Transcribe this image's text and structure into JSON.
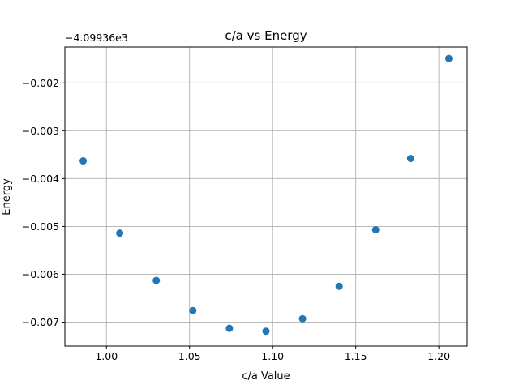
{
  "chart_data": {
    "type": "scatter",
    "title": "c/a vs Energy",
    "xlabel": "c/a Value",
    "ylabel": "Energy",
    "y_offset_text": "−4.09936e3",
    "xlim": [
      0.975,
      1.217
    ],
    "ylim": [
      -0.0075,
      -0.00125
    ],
    "xticks": [
      1.0,
      1.05,
      1.1,
      1.15,
      1.2
    ],
    "xtick_labels": [
      "1.00",
      "1.05",
      "1.10",
      "1.15",
      "1.20"
    ],
    "yticks": [
      -0.002,
      -0.003,
      -0.004,
      -0.005,
      -0.006,
      -0.007
    ],
    "ytick_labels": [
      "−0.002",
      "−0.003",
      "−0.004",
      "−0.005",
      "−0.006",
      "−0.007"
    ],
    "grid": true,
    "point_color": "#1f77b4",
    "x": [
      0.986,
      1.008,
      1.03,
      1.052,
      1.074,
      1.096,
      1.118,
      1.14,
      1.162,
      1.183,
      1.206
    ],
    "y": [
      -0.00363,
      -0.00514,
      -0.00613,
      -0.00676,
      -0.00713,
      -0.00719,
      -0.00693,
      -0.00625,
      -0.00507,
      -0.00358,
      -0.00149
    ]
  }
}
